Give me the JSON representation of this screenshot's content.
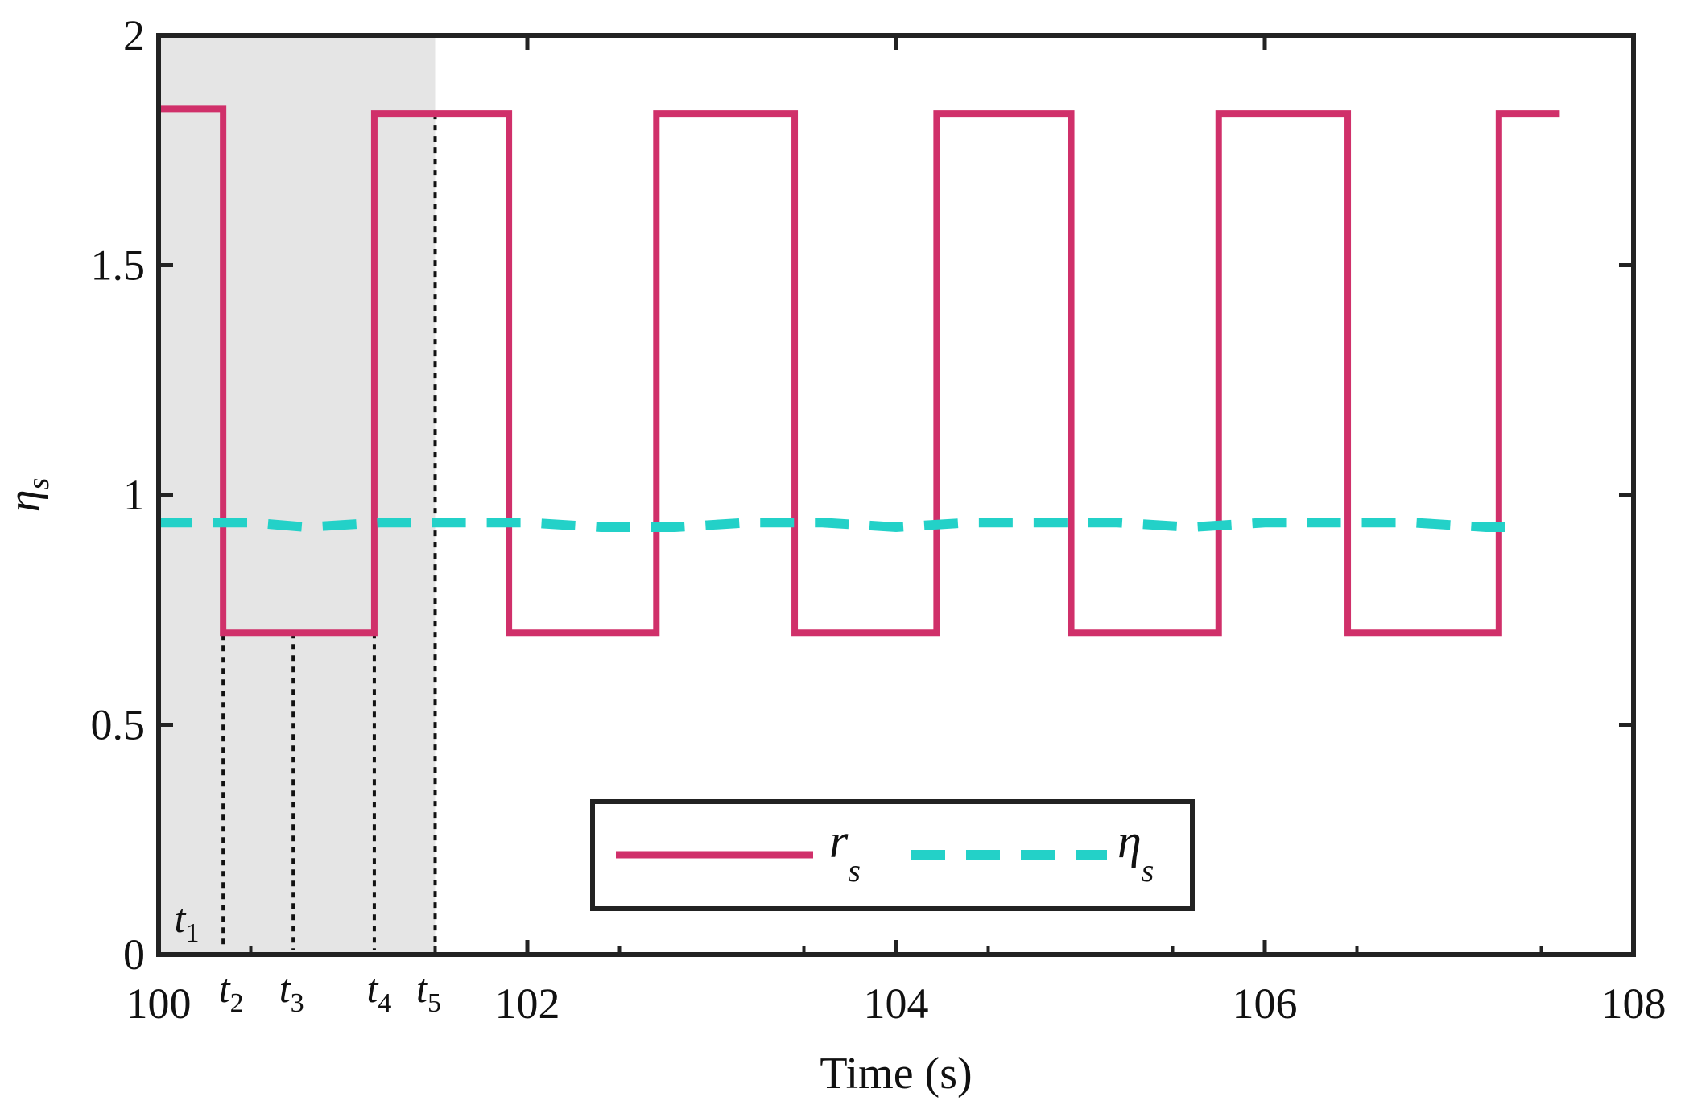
{
  "chart_data": {
    "type": "line",
    "xlabel": "Time (s)",
    "ylabel": "η",
    "ylabel_sub": "s",
    "xlim": [
      100,
      108
    ],
    "ylim": [
      0,
      2
    ],
    "xticks": [
      100,
      102,
      104,
      106,
      108
    ],
    "yticks": [
      0,
      0.5,
      1,
      1.5,
      2
    ],
    "ytick_labels": [
      "0",
      "0.5",
      "1",
      "1.5",
      "2"
    ],
    "grid": false,
    "shaded_region": {
      "x_start": 100,
      "x_end": 101.5,
      "color": "#e5e5e5"
    },
    "series": [
      {
        "name": "r",
        "name_sub": "s",
        "style": "solid",
        "color": "#d0306a",
        "x": [
          100,
          100.35,
          100.35,
          101.17,
          101.17,
          101.9,
          101.9,
          102.7,
          102.7,
          103.45,
          103.45,
          104.22,
          104.22,
          104.95,
          104.95,
          105.75,
          105.75,
          106.45,
          106.45,
          107.27,
          107.27,
          107.6
        ],
        "y": [
          1.84,
          1.84,
          0.7,
          0.7,
          1.83,
          1.83,
          0.7,
          0.7,
          1.83,
          1.83,
          0.7,
          0.7,
          1.83,
          1.83,
          0.7,
          0.7,
          1.83,
          1.83,
          0.7,
          0.7,
          1.83,
          1.83
        ]
      },
      {
        "name": "η",
        "name_sub": "s",
        "style": "dashed",
        "color": "#23d1c8",
        "x": [
          100,
          100.5,
          100.8,
          101.2,
          101.6,
          102.0,
          102.4,
          102.8,
          103.2,
          103.6,
          104.0,
          104.4,
          104.8,
          105.2,
          105.6,
          106.0,
          106.4,
          106.8,
          107.2,
          107.4
        ],
        "y": [
          0.94,
          0.94,
          0.93,
          0.94,
          0.94,
          0.94,
          0.93,
          0.93,
          0.94,
          0.94,
          0.93,
          0.94,
          0.94,
          0.94,
          0.93,
          0.94,
          0.94,
          0.94,
          0.93,
          0.93
        ]
      }
    ],
    "event_markers": [
      {
        "label": "t",
        "sub": "1",
        "x": 100.0,
        "y_top": 1.84
      },
      {
        "label": "t",
        "sub": "2",
        "x": 100.35,
        "y_top": 1.8
      },
      {
        "label": "t",
        "sub": "3",
        "x": 100.73,
        "y_top": 0.7
      },
      {
        "label": "t",
        "sub": "4",
        "x": 101.17,
        "y_top": 0.7
      },
      {
        "label": "t",
        "sub": "5",
        "x": 101.5,
        "y_top": 1.83
      }
    ],
    "legend_position": "bottom-center"
  },
  "colors": {
    "rs": "#d0306a",
    "eta": "#23d1c8",
    "shade": "#e5e5e5",
    "axis": "#222222"
  }
}
